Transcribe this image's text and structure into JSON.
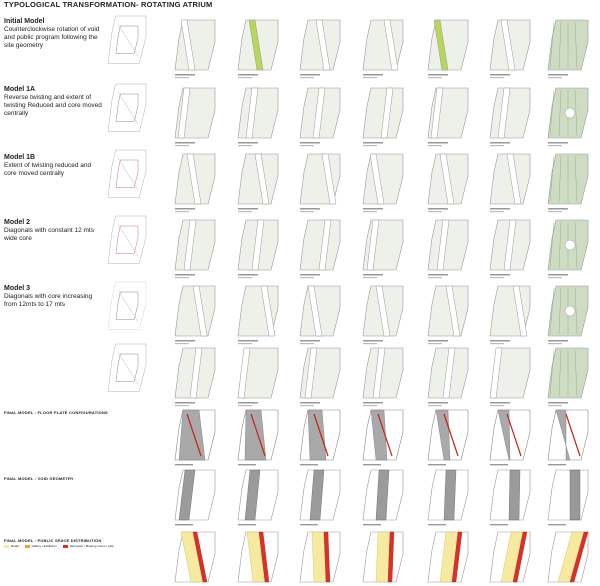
{
  "title": "TYPOLOGICAL TRANSFORMATION- ROTATING ATRIUM",
  "models": [
    {
      "name": "Initial Model",
      "desc": "Counterclockwise rotation of void and public program following the site geometry"
    },
    {
      "name": "Model 1A",
      "desc": "Reverse twisting and extent of twisting Reduced and core moved centrally"
    },
    {
      "name": "Model 1B",
      "desc": "Extent of twisting reduced and core moved centrally"
    },
    {
      "name": "Model 2",
      "desc": "Diagonals with constant 12 mts wide core"
    },
    {
      "name": "Model 3",
      "desc": "Diagonals with core increasing from 12mts to 17 mts"
    }
  ],
  "sections": {
    "floor_plate": "FINAL MODEL : FLOOR PLATE CONFIGURATIONS",
    "void_geometry": "FINAL MODEL : VOID GEOMETRY",
    "public_space": "FINAL MODEL : PUBLIC SPACE DISTRIBUTION"
  },
  "legend": [
    {
      "label": "Retail",
      "color": "#f6e9a0"
    },
    {
      "label": "Gallery / Exhibition",
      "color": "#e8a33c"
    },
    {
      "label": "Reception / Meeting rooms / café",
      "color": "#d9302a"
    }
  ],
  "colors": {
    "plate_fill": "#eef0ea",
    "plate_stroke": "#9a9a9a",
    "void_green": "#cfdcc4",
    "highlight_green": "#b7d65a",
    "slab_grey": "#a9a9a9",
    "edge_red": "#c8201a",
    "retail_yellow": "#f6e9a0",
    "public_red": "#d9302a"
  }
}
